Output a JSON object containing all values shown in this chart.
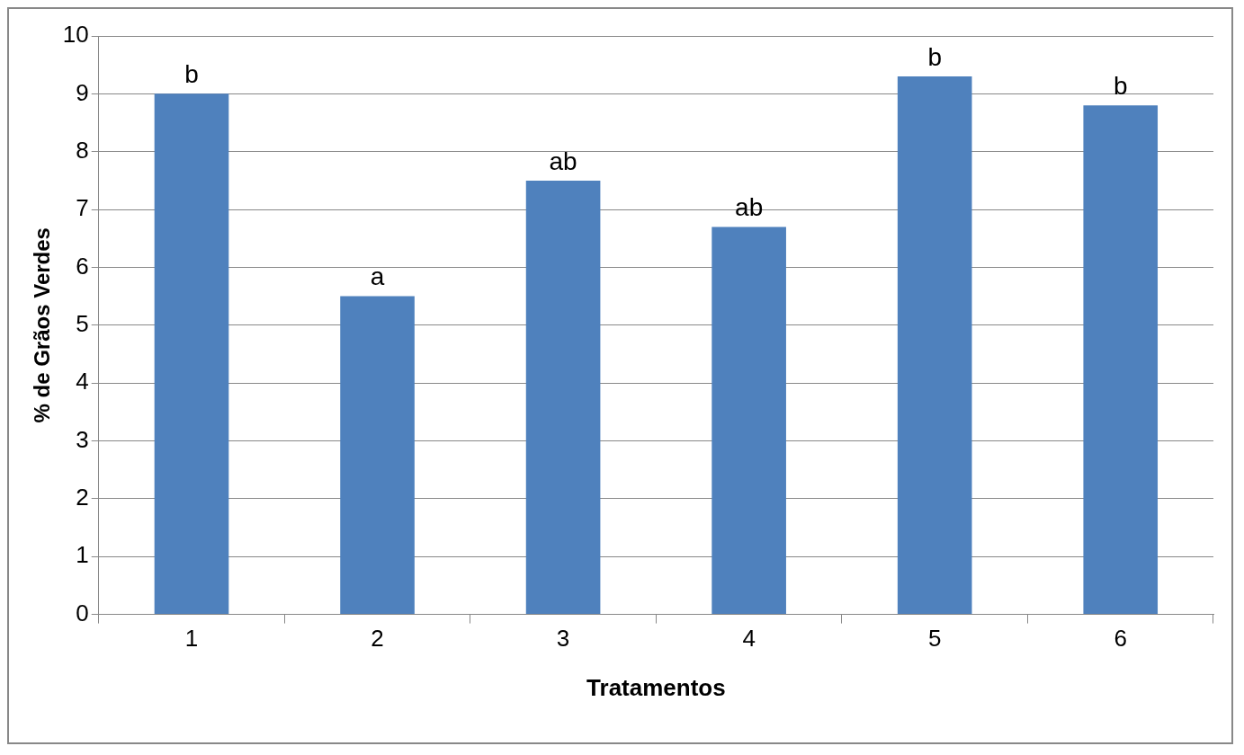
{
  "chart_data": {
    "type": "bar",
    "xlabel": "Tratamentos",
    "ylabel": "% de Grãos Verdes",
    "categories": [
      "1",
      "2",
      "3",
      "4",
      "5",
      "6"
    ],
    "values": [
      9.0,
      5.5,
      7.5,
      6.7,
      9.3,
      8.8
    ],
    "color": "#4f81bd",
    "ylim": [
      0,
      10
    ],
    "yticks": [
      0,
      1,
      2,
      3,
      4,
      5,
      6,
      7,
      8,
      9,
      10
    ],
    "grid": "y",
    "annotations": [
      {
        "text": "b",
        "x": "1",
        "y": 9.0
      },
      {
        "text": "a",
        "x": "2",
        "y": 5.5
      },
      {
        "text": "ab",
        "x": "3",
        "y": 7.5
      },
      {
        "text": "ab",
        "x": "4",
        "y": 6.7
      },
      {
        "text": "b",
        "x": "5",
        "y": 9.3
      },
      {
        "text": "b",
        "x": "6",
        "y": 8.8
      }
    ]
  }
}
